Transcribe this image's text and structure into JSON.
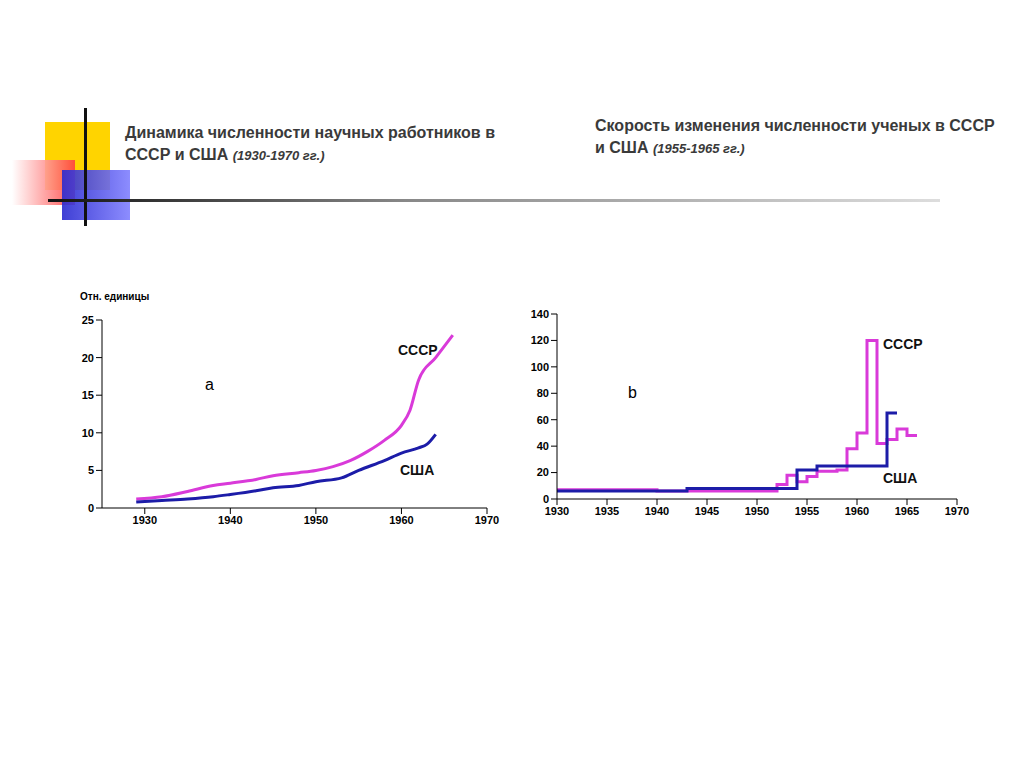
{
  "chart_data": [
    {
      "type": "line",
      "title": "Динамика численности научных работников в СССР и США",
      "subtitle": "(1930-1970 гг.)",
      "y_label": "Отн. единицы",
      "annotations": [
        "a"
      ],
      "xlim": [
        1925,
        1970
      ],
      "xticks": [
        1930,
        1940,
        1950,
        1960,
        1970
      ],
      "ylim": [
        0,
        25
      ],
      "yticks": [
        0,
        5,
        10,
        15,
        20,
        25
      ],
      "grid": false,
      "series": [
        {
          "name": "СССР",
          "color": "#d93ad9",
          "x": [
            1929,
            1932,
            1935,
            1938,
            1940,
            1943,
            1945,
            1948,
            1950,
            1952,
            1954,
            1956,
            1958,
            1960,
            1961,
            1962,
            1964,
            1966
          ],
          "values": [
            1.2,
            1.5,
            2.2,
            3,
            3.3,
            3.8,
            4.3,
            4.7,
            5,
            5.5,
            6.3,
            7.5,
            9,
            11,
            13,
            17,
            20,
            23
          ]
        },
        {
          "name": "США",
          "color": "#1c1ca8",
          "x": [
            1929,
            1932,
            1935,
            1938,
            1940,
            1943,
            1945,
            1948,
            1950,
            1953,
            1955,
            1958,
            1960,
            1962,
            1963,
            1964
          ],
          "values": [
            0.8,
            1,
            1.2,
            1.5,
            1.8,
            2.3,
            2.7,
            3,
            3.5,
            4,
            5,
            6.3,
            7.3,
            8,
            8.5,
            9.8
          ]
        }
      ]
    },
    {
      "type": "step",
      "title": "Скорость изменения численности ученых в СССР и США",
      "subtitle": "(1955-1965 гг.)",
      "annotations": [
        "b"
      ],
      "xlim": [
        1930,
        1970
      ],
      "xticks": [
        1930,
        1935,
        1940,
        1945,
        1950,
        1955,
        1960,
        1965,
        1970
      ],
      "ylim": [
        0,
        140
      ],
      "yticks": [
        0,
        20,
        40,
        60,
        80,
        100,
        120,
        140
      ],
      "grid": false,
      "series": [
        {
          "name": "СССР",
          "color": "#d93ad9",
          "x": [
            1930,
            1940,
            1952,
            1953,
            1954,
            1955,
            1956,
            1958,
            1959,
            1960,
            1961,
            1962,
            1963,
            1964,
            1965,
            1966
          ],
          "values": [
            7,
            6,
            11,
            18,
            13,
            17,
            21,
            22,
            38,
            50,
            120,
            42,
            45,
            53,
            48,
            48
          ]
        },
        {
          "name": "США",
          "color": "#1c1ca8",
          "x": [
            1930,
            1943,
            1954,
            1956,
            1963,
            1964
          ],
          "values": [
            6,
            8,
            22,
            25,
            65,
            65
          ]
        }
      ]
    }
  ]
}
